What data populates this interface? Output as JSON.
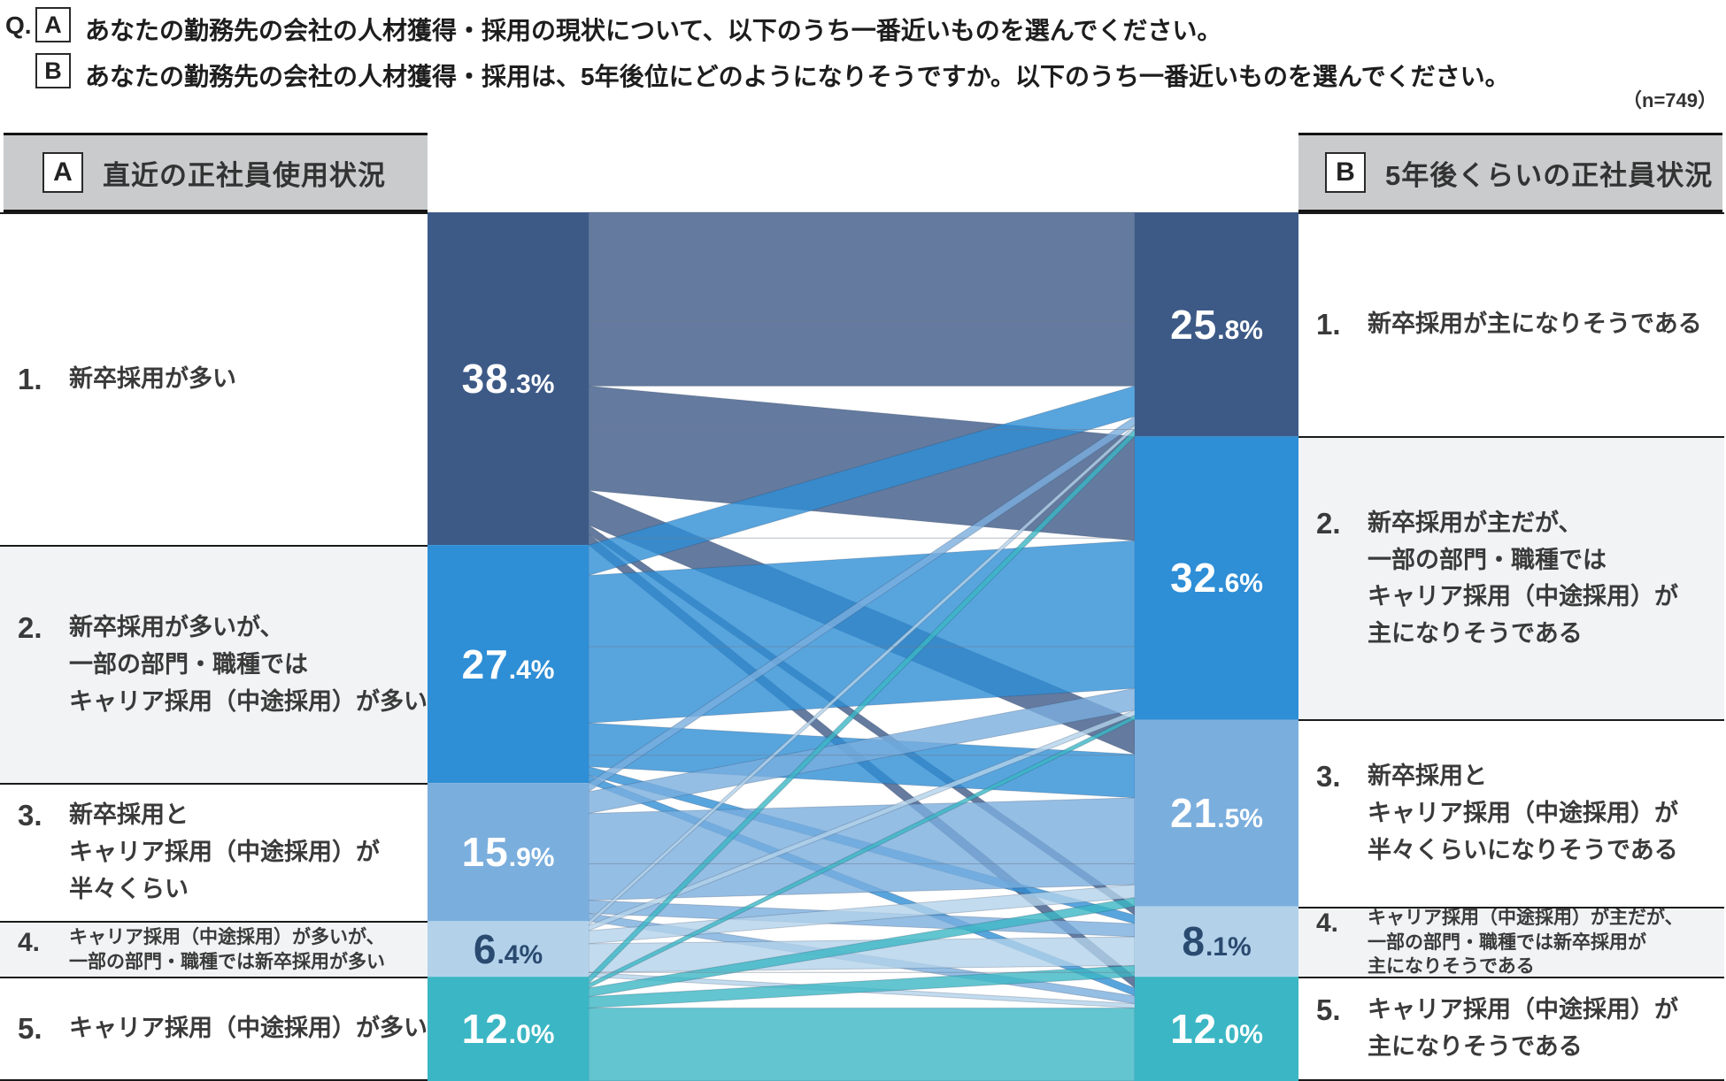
{
  "question": {
    "q_label": "Q.",
    "items": [
      {
        "tag": "A",
        "text": "あなたの勤務先の会社の人材獲得・採用の現状について、以下のうち一番近いものを選んでください。"
      },
      {
        "tag": "B",
        "text": "あなたの勤務先の会社の人材獲得・採用は、5年後位にどのようになりそうですか。以下のうち一番近いものを選んでください。"
      }
    ],
    "sample_size": "（n=749）"
  },
  "panels": {
    "left": {
      "tag": "A",
      "title": "直近の正社員使用状況"
    },
    "right": {
      "tag": "B",
      "title": "5年後くらいの正社員状況"
    }
  },
  "chart_data": {
    "type": "sankey",
    "unit": "%",
    "left_axis_title": "直近の正社員使用状況",
    "right_axis_title": "5年後くらいの正社員状況",
    "left_nodes": [
      {
        "no": "1.",
        "label": "新卒採用が多い",
        "value": 38.3,
        "color": "#3d5a87",
        "value_color": "#ffffff"
      },
      {
        "no": "2.",
        "label": "新卒採用が多いが、\n一部の部門・職種では\nキャリア採用（中途採用）が多い",
        "value": 27.4,
        "color": "#2e8ed6",
        "value_color": "#ffffff"
      },
      {
        "no": "3.",
        "label": "新卒採用と\nキャリア採用（中途採用）が\n半々くらい",
        "value": 15.9,
        "color": "#7aaedd",
        "value_color": "#ffffff"
      },
      {
        "no": "4.",
        "label": "キャリア採用（中途採用）が多いが、\n一部の部門・職種では新卒採用が多い",
        "value": 6.4,
        "color": "#b3d2ea",
        "value_color": "#2a4a70",
        "small": true
      },
      {
        "no": "5.",
        "label": "キャリア採用（中途採用）が多い",
        "value": 12.0,
        "color": "#3bb6c4",
        "value_color": "#ffffff"
      }
    ],
    "right_nodes": [
      {
        "no": "1.",
        "label": "新卒採用が主になりそうである",
        "value": 25.8,
        "color": "#3d5a87",
        "value_color": "#ffffff"
      },
      {
        "no": "2.",
        "label": "新卒採用が主だが、\n一部の部門・職種では\nキャリア採用（中途採用）が\n主になりそうである",
        "value": 32.6,
        "color": "#2e8ed6",
        "value_color": "#ffffff"
      },
      {
        "no": "3.",
        "label": "新卒採用と\nキャリア採用（中途採用）が\n半々くらいになりそうである",
        "value": 21.5,
        "color": "#7aaedd",
        "value_color": "#ffffff"
      },
      {
        "no": "4.",
        "label": "キャリア採用（中途採用）が主だが、\n一部の部門・職種では新卒採用が\n主になりそうである",
        "value": 8.1,
        "color": "#b3d2ea",
        "value_color": "#2a4a70",
        "small": true
      },
      {
        "no": "5.",
        "label": "キャリア採用（中途採用）が\n主になりそうである",
        "value": 12.0,
        "color": "#3bb6c4",
        "value_color": "#ffffff"
      }
    ],
    "links_estimated": [
      [
        20.0,
        12.0,
        4.0,
        1.0,
        1.3
      ],
      [
        3.5,
        17.0,
        5.0,
        1.0,
        0.9
      ],
      [
        1.0,
        2.5,
        10.0,
        1.5,
        0.9
      ],
      [
        0.5,
        0.6,
        1.5,
        3.3,
        0.5
      ],
      [
        0.8,
        0.5,
        1.0,
        1.3,
        8.4
      ]
    ],
    "flow_opacity": 0.8,
    "flow_stroke": "rgba(30,50,80,0.22)",
    "gridline_color": "#6b7a8d"
  }
}
